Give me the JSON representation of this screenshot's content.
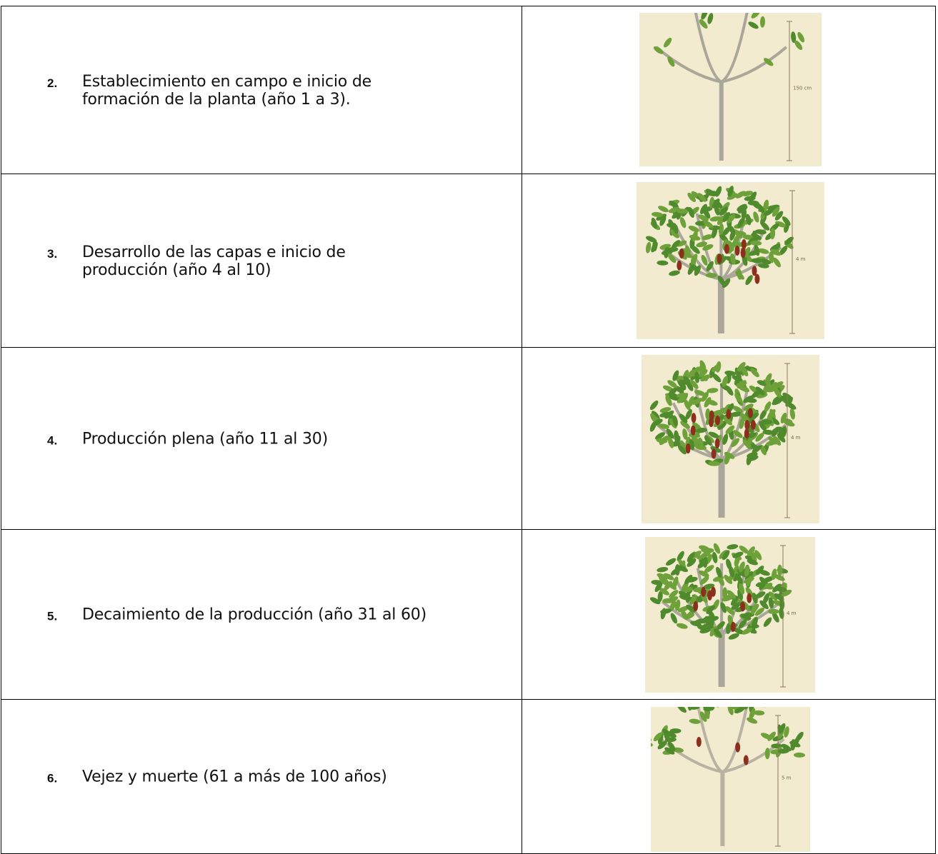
{
  "table": {
    "rows": [
      {
        "number": "2.",
        "lines": [
          "Establecimiento en campo e inicio de",
          "formación de la planta (año 1 a 3)."
        ],
        "scale": "150 cm"
      },
      {
        "number": "3.",
        "lines": [
          "Desarrollo de las capas e inicio de",
          "producción (año 4 al 10)"
        ],
        "scale": "4 m"
      },
      {
        "number": "4.",
        "lines": [
          "Producción plena (año 11 al 30)"
        ],
        "scale": "4 m"
      },
      {
        "number": "5.",
        "lines": [
          "Decaimiento de la producción (año 31 al 60)"
        ],
        "scale": "4 m"
      },
      {
        "number": "6.",
        "lines": [
          "Vejez y muerte (61 a más de 100 años)"
        ],
        "scale": "5 m"
      }
    ]
  }
}
